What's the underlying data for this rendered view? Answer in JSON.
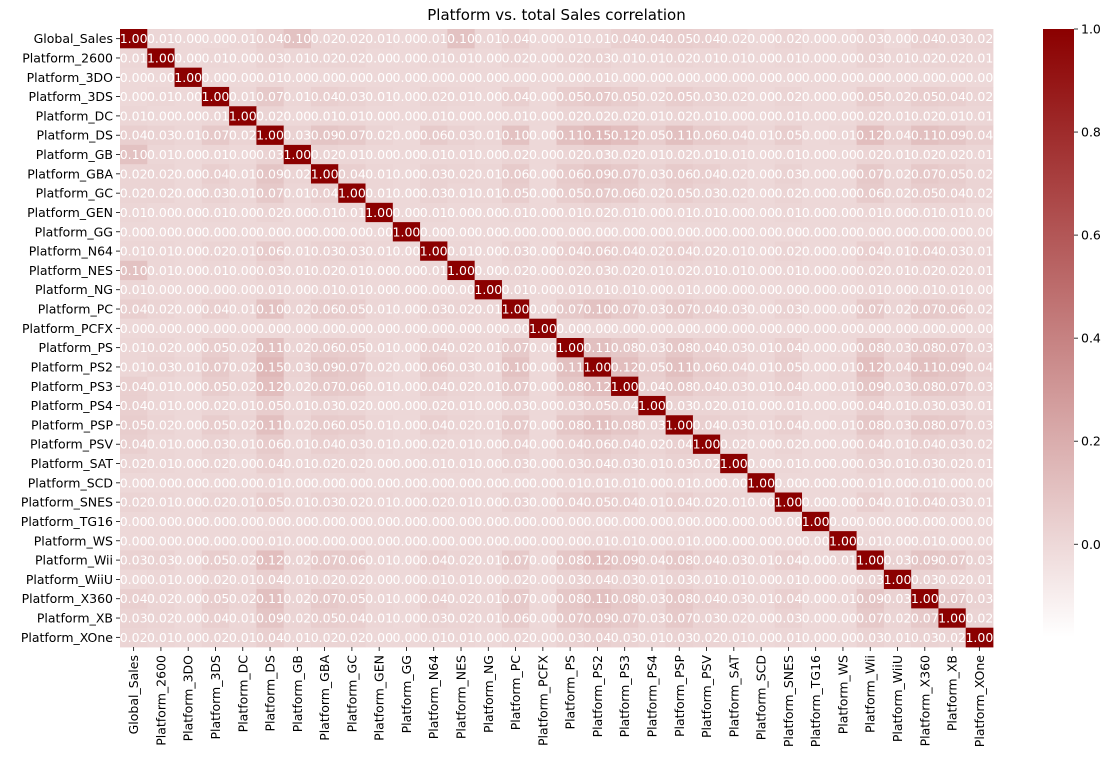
{
  "chart_data": {
    "type": "heatmap",
    "title": "Platform vs. total Sales correlation",
    "xlabel": "",
    "ylabel": "",
    "labels": [
      "Global_Sales",
      "Platform_2600",
      "Platform_3DO",
      "Platform_3DS",
      "Platform_DC",
      "Platform_DS",
      "Platform_GB",
      "Platform_GBA",
      "Platform_GC",
      "Platform_GEN",
      "Platform_GG",
      "Platform_N64",
      "Platform_NES",
      "Platform_NG",
      "Platform_PC",
      "Platform_PCFX",
      "Platform_PS",
      "Platform_PS2",
      "Platform_PS3",
      "Platform_PS4",
      "Platform_PSP",
      "Platform_PSV",
      "Platform_SAT",
      "Platform_SCD",
      "Platform_SNES",
      "Platform_TG16",
      "Platform_WS",
      "Platform_Wii",
      "Platform_WiiU",
      "Platform_X360",
      "Platform_XB",
      "Platform_XOne"
    ],
    "matrix": [
      [
        "1.00",
        "0.01",
        "0.00",
        "0.00",
        "0.01",
        "0.04",
        "0.10",
        "0.02",
        "0.02",
        "0.01",
        "0.00",
        "0.01",
        "0.10",
        "0.01",
        "0.04",
        "0.00",
        "0.01",
        "0.01",
        "0.04",
        "0.04",
        "0.05",
        "0.04",
        "0.02",
        "0.00",
        "0.02",
        "0.00",
        "0.00",
        "0.03",
        "0.00",
        "0.04",
        "0.03",
        "0.02"
      ],
      [
        "0.01",
        "1.00",
        "0.00",
        "0.01",
        "0.00",
        "0.03",
        "0.01",
        "0.02",
        "0.02",
        "0.00",
        "0.00",
        "0.01",
        "0.01",
        "0.00",
        "0.02",
        "0.00",
        "0.02",
        "0.03",
        "0.01",
        "0.01",
        "0.02",
        "0.01",
        "0.01",
        "0.00",
        "0.01",
        "0.00",
        "0.00",
        "0.03",
        "0.01",
        "0.02",
        "0.02",
        "0.01"
      ],
      [
        "0.00",
        "0.00",
        "1.00",
        "0.00",
        "0.00",
        "0.01",
        "0.00",
        "0.00",
        "0.00",
        "0.00",
        "0.00",
        "0.00",
        "0.00",
        "0.00",
        "0.00",
        "0.00",
        "0.00",
        "0.01",
        "0.00",
        "0.00",
        "0.00",
        "0.00",
        "0.00",
        "0.00",
        "0.00",
        "0.00",
        "0.00",
        "0.00",
        "0.00",
        "0.00",
        "0.00",
        "0.00"
      ],
      [
        "0.00",
        "0.01",
        "0.00",
        "1.00",
        "0.01",
        "0.07",
        "0.01",
        "0.04",
        "0.03",
        "0.01",
        "0.00",
        "0.02",
        "0.01",
        "0.00",
        "0.04",
        "0.00",
        "0.05",
        "0.07",
        "0.05",
        "0.02",
        "0.05",
        "0.03",
        "0.02",
        "0.00",
        "0.02",
        "0.00",
        "0.00",
        "0.05",
        "0.02",
        "0.05",
        "0.04",
        "0.02"
      ],
      [
        "0.01",
        "0.00",
        "0.00",
        "0.01",
        "1.00",
        "0.02",
        "0.00",
        "0.01",
        "0.01",
        "0.00",
        "0.00",
        "0.01",
        "0.00",
        "0.00",
        "0.01",
        "0.00",
        "0.02",
        "0.02",
        "0.02",
        "0.01",
        "0.02",
        "0.01",
        "0.00",
        "0.00",
        "0.01",
        "0.00",
        "0.00",
        "0.02",
        "0.01",
        "0.02",
        "0.01",
        "0.01"
      ],
      [
        "0.04",
        "0.03",
        "0.01",
        "0.07",
        "0.02",
        "1.00",
        "0.03",
        "0.09",
        "0.07",
        "0.02",
        "0.00",
        "0.06",
        "0.03",
        "0.01",
        "0.10",
        "0.00",
        "0.11",
        "0.15",
        "0.12",
        "0.05",
        "0.11",
        "0.06",
        "0.04",
        "0.01",
        "0.05",
        "0.00",
        "0.01",
        "0.12",
        "0.04",
        "0.11",
        "0.09",
        "0.04"
      ],
      [
        "0.10",
        "0.01",
        "0.00",
        "0.01",
        "0.00",
        "0.03",
        "1.00",
        "0.02",
        "0.01",
        "0.00",
        "0.00",
        "0.01",
        "0.01",
        "0.00",
        "0.02",
        "0.00",
        "0.02",
        "0.03",
        "0.02",
        "0.01",
        "0.02",
        "0.01",
        "0.01",
        "0.00",
        "0.01",
        "0.00",
        "0.00",
        "0.02",
        "0.01",
        "0.02",
        "0.02",
        "0.01"
      ],
      [
        "0.02",
        "0.02",
        "0.00",
        "0.04",
        "0.01",
        "0.09",
        "0.02",
        "1.00",
        "0.04",
        "0.01",
        "0.00",
        "0.03",
        "0.02",
        "0.01",
        "0.06",
        "0.00",
        "0.06",
        "0.09",
        "0.07",
        "0.03",
        "0.06",
        "0.04",
        "0.02",
        "0.00",
        "0.03",
        "0.00",
        "0.00",
        "0.07",
        "0.02",
        "0.07",
        "0.05",
        "0.02"
      ],
      [
        "0.02",
        "0.02",
        "0.00",
        "0.03",
        "0.01",
        "0.07",
        "0.01",
        "0.04",
        "1.00",
        "0.01",
        "0.00",
        "0.03",
        "0.01",
        "0.01",
        "0.05",
        "0.00",
        "0.05",
        "0.07",
        "0.06",
        "0.02",
        "0.05",
        "0.03",
        "0.02",
        "0.00",
        "0.02",
        "0.00",
        "0.00",
        "0.06",
        "0.02",
        "0.05",
        "0.04",
        "0.02"
      ],
      [
        "0.01",
        "0.00",
        "0.00",
        "0.01",
        "0.00",
        "0.02",
        "0.00",
        "0.01",
        "0.01",
        "1.00",
        "0.00",
        "0.01",
        "0.00",
        "0.00",
        "0.01",
        "0.00",
        "0.01",
        "0.02",
        "0.01",
        "0.00",
        "0.01",
        "0.01",
        "0.00",
        "0.00",
        "0.01",
        "0.00",
        "0.00",
        "0.01",
        "0.00",
        "0.01",
        "0.01",
        "0.00"
      ],
      [
        "0.00",
        "0.00",
        "0.00",
        "0.00",
        "0.00",
        "0.00",
        "0.00",
        "0.00",
        "0.00",
        "0.00",
        "1.00",
        "0.00",
        "0.00",
        "0.00",
        "0.00",
        "0.00",
        "0.00",
        "0.00",
        "0.00",
        "0.00",
        "0.00",
        "0.00",
        "0.00",
        "0.00",
        "0.00",
        "0.00",
        "0.00",
        "0.00",
        "0.00",
        "0.00",
        "0.00",
        "0.00"
      ],
      [
        "0.01",
        "0.01",
        "0.00",
        "0.02",
        "0.01",
        "0.06",
        "0.01",
        "0.03",
        "0.03",
        "0.01",
        "0.00",
        "1.00",
        "0.01",
        "0.00",
        "0.03",
        "0.00",
        "0.04",
        "0.06",
        "0.04",
        "0.02",
        "0.04",
        "0.02",
        "0.01",
        "0.00",
        "0.02",
        "0.00",
        "0.00",
        "0.04",
        "0.01",
        "0.04",
        "0.03",
        "0.01"
      ],
      [
        "0.10",
        "0.01",
        "0.00",
        "0.01",
        "0.00",
        "0.03",
        "0.01",
        "0.02",
        "0.01",
        "0.00",
        "0.00",
        "0.01",
        "1.00",
        "0.00",
        "0.02",
        "0.00",
        "0.02",
        "0.03",
        "0.02",
        "0.01",
        "0.02",
        "0.01",
        "0.01",
        "0.00",
        "0.01",
        "0.00",
        "0.00",
        "0.02",
        "0.01",
        "0.02",
        "0.02",
        "0.01"
      ],
      [
        "0.01",
        "0.00",
        "0.00",
        "0.00",
        "0.00",
        "0.01",
        "0.00",
        "0.01",
        "0.01",
        "0.00",
        "0.00",
        "0.00",
        "0.00",
        "1.00",
        "0.01",
        "0.00",
        "0.01",
        "0.01",
        "0.01",
        "0.00",
        "0.01",
        "0.00",
        "0.00",
        "0.00",
        "0.00",
        "0.00",
        "0.00",
        "0.01",
        "0.00",
        "0.01",
        "0.01",
        "0.00"
      ],
      [
        "0.04",
        "0.02",
        "0.00",
        "0.04",
        "0.01",
        "0.10",
        "0.02",
        "0.06",
        "0.05",
        "0.01",
        "0.00",
        "0.03",
        "0.02",
        "0.01",
        "1.00",
        "0.00",
        "0.07",
        "0.10",
        "0.07",
        "0.03",
        "0.07",
        "0.04",
        "0.03",
        "0.00",
        "0.03",
        "0.00",
        "0.00",
        "0.07",
        "0.02",
        "0.07",
        "0.06",
        "0.02"
      ],
      [
        "0.00",
        "0.00",
        "0.00",
        "0.00",
        "0.00",
        "0.00",
        "0.00",
        "0.00",
        "0.00",
        "0.00",
        "0.00",
        "0.00",
        "0.00",
        "0.00",
        "0.00",
        "1.00",
        "0.00",
        "0.00",
        "0.00",
        "0.00",
        "0.00",
        "0.00",
        "0.00",
        "0.00",
        "0.00",
        "0.00",
        "0.00",
        "0.00",
        "0.00",
        "0.00",
        "0.00",
        "0.00"
      ],
      [
        "0.01",
        "0.02",
        "0.00",
        "0.05",
        "0.02",
        "0.11",
        "0.02",
        "0.06",
        "0.05",
        "0.01",
        "0.00",
        "0.04",
        "0.02",
        "0.01",
        "0.07",
        "0.00",
        "1.00",
        "0.11",
        "0.08",
        "0.03",
        "0.08",
        "0.04",
        "0.03",
        "0.01",
        "0.04",
        "0.00",
        "0.00",
        "0.08",
        "0.03",
        "0.08",
        "0.07",
        "0.03"
      ],
      [
        "0.01",
        "0.03",
        "0.01",
        "0.07",
        "0.02",
        "0.15",
        "0.03",
        "0.09",
        "0.07",
        "0.02",
        "0.00",
        "0.06",
        "0.03",
        "0.01",
        "0.10",
        "0.00",
        "0.11",
        "1.00",
        "0.12",
        "0.05",
        "0.11",
        "0.06",
        "0.04",
        "0.01",
        "0.05",
        "0.00",
        "0.01",
        "0.12",
        "0.04",
        "0.11",
        "0.09",
        "0.04"
      ],
      [
        "0.04",
        "0.01",
        "0.00",
        "0.05",
        "0.02",
        "0.12",
        "0.02",
        "0.07",
        "0.06",
        "0.01",
        "0.00",
        "0.04",
        "0.02",
        "0.01",
        "0.07",
        "0.00",
        "0.08",
        "0.12",
        "1.00",
        "0.04",
        "0.08",
        "0.04",
        "0.03",
        "0.01",
        "0.04",
        "0.00",
        "0.01",
        "0.09",
        "0.03",
        "0.08",
        "0.07",
        "0.03"
      ],
      [
        "0.04",
        "0.01",
        "0.00",
        "0.02",
        "0.01",
        "0.05",
        "0.01",
        "0.03",
        "0.02",
        "0.00",
        "0.00",
        "0.02",
        "0.01",
        "0.00",
        "0.03",
        "0.00",
        "0.03",
        "0.05",
        "0.04",
        "1.00",
        "0.03",
        "0.02",
        "0.01",
        "0.00",
        "0.01",
        "0.00",
        "0.00",
        "0.04",
        "0.01",
        "0.03",
        "0.03",
        "0.01"
      ],
      [
        "0.05",
        "0.02",
        "0.00",
        "0.05",
        "0.02",
        "0.11",
        "0.02",
        "0.06",
        "0.05",
        "0.01",
        "0.00",
        "0.04",
        "0.02",
        "0.01",
        "0.07",
        "0.00",
        "0.08",
        "0.11",
        "0.08",
        "0.03",
        "1.00",
        "0.04",
        "0.03",
        "0.01",
        "0.04",
        "0.00",
        "0.01",
        "0.08",
        "0.03",
        "0.08",
        "0.07",
        "0.03"
      ],
      [
        "0.04",
        "0.01",
        "0.00",
        "0.03",
        "0.01",
        "0.06",
        "0.01",
        "0.04",
        "0.03",
        "0.01",
        "0.00",
        "0.02",
        "0.01",
        "0.00",
        "0.04",
        "0.00",
        "0.04",
        "0.06",
        "0.04",
        "0.02",
        "0.04",
        "1.00",
        "0.02",
        "0.00",
        "0.02",
        "0.00",
        "0.00",
        "0.04",
        "0.01",
        "0.04",
        "0.03",
        "0.02"
      ],
      [
        "0.02",
        "0.01",
        "0.00",
        "0.02",
        "0.00",
        "0.04",
        "0.01",
        "0.02",
        "0.02",
        "0.00",
        "0.00",
        "0.01",
        "0.01",
        "0.00",
        "0.03",
        "0.00",
        "0.03",
        "0.04",
        "0.03",
        "0.01",
        "0.03",
        "0.02",
        "1.00",
        "0.00",
        "0.01",
        "0.00",
        "0.00",
        "0.03",
        "0.01",
        "0.03",
        "0.02",
        "0.01"
      ],
      [
        "0.00",
        "0.00",
        "0.00",
        "0.00",
        "0.00",
        "0.01",
        "0.00",
        "0.00",
        "0.00",
        "0.00",
        "0.00",
        "0.00",
        "0.00",
        "0.00",
        "0.00",
        "0.00",
        "0.01",
        "0.01",
        "0.01",
        "0.00",
        "0.01",
        "0.00",
        "0.00",
        "1.00",
        "0.00",
        "0.00",
        "0.00",
        "0.01",
        "0.00",
        "0.01",
        "0.00",
        "0.00"
      ],
      [
        "0.02",
        "0.01",
        "0.00",
        "0.02",
        "0.01",
        "0.05",
        "0.01",
        "0.03",
        "0.02",
        "0.01",
        "0.00",
        "0.02",
        "0.01",
        "0.00",
        "0.03",
        "0.00",
        "0.04",
        "0.05",
        "0.04",
        "0.01",
        "0.04",
        "0.02",
        "0.01",
        "0.00",
        "1.00",
        "0.00",
        "0.00",
        "0.04",
        "0.01",
        "0.04",
        "0.03",
        "0.01"
      ],
      [
        "0.00",
        "0.00",
        "0.00",
        "0.00",
        "0.00",
        "0.00",
        "0.00",
        "0.00",
        "0.00",
        "0.00",
        "0.00",
        "0.00",
        "0.00",
        "0.00",
        "0.00",
        "0.00",
        "0.00",
        "0.00",
        "0.00",
        "0.00",
        "0.00",
        "0.00",
        "0.00",
        "0.00",
        "0.00",
        "1.00",
        "0.00",
        "0.00",
        "0.00",
        "0.00",
        "0.00",
        "0.00"
      ],
      [
        "0.00",
        "0.00",
        "0.00",
        "0.00",
        "0.00",
        "0.01",
        "0.00",
        "0.00",
        "0.00",
        "0.00",
        "0.00",
        "0.00",
        "0.00",
        "0.00",
        "0.00",
        "0.00",
        "0.00",
        "0.01",
        "0.01",
        "0.00",
        "0.01",
        "0.00",
        "0.00",
        "0.00",
        "0.00",
        "0.00",
        "1.00",
        "0.01",
        "0.00",
        "0.01",
        "0.00",
        "0.00"
      ],
      [
        "0.03",
        "0.03",
        "0.00",
        "0.05",
        "0.02",
        "0.12",
        "0.02",
        "0.07",
        "0.06",
        "0.01",
        "0.00",
        "0.04",
        "0.02",
        "0.01",
        "0.07",
        "0.00",
        "0.08",
        "0.12",
        "0.09",
        "0.04",
        "0.08",
        "0.04",
        "0.03",
        "0.01",
        "0.04",
        "0.00",
        "0.01",
        "1.00",
        "0.03",
        "0.09",
        "0.07",
        "0.03"
      ],
      [
        "0.00",
        "0.01",
        "0.00",
        "0.02",
        "0.01",
        "0.04",
        "0.01",
        "0.02",
        "0.02",
        "0.00",
        "0.00",
        "0.01",
        "0.01",
        "0.00",
        "0.02",
        "0.00",
        "0.03",
        "0.04",
        "0.03",
        "0.01",
        "0.03",
        "0.01",
        "0.01",
        "0.00",
        "0.01",
        "0.00",
        "0.00",
        "0.03",
        "1.00",
        "0.03",
        "0.02",
        "0.01"
      ],
      [
        "0.04",
        "0.02",
        "0.00",
        "0.05",
        "0.02",
        "0.11",
        "0.02",
        "0.07",
        "0.05",
        "0.01",
        "0.00",
        "0.04",
        "0.02",
        "0.01",
        "0.07",
        "0.00",
        "0.08",
        "0.11",
        "0.08",
        "0.03",
        "0.08",
        "0.04",
        "0.03",
        "0.01",
        "0.04",
        "0.00",
        "0.01",
        "0.09",
        "0.03",
        "1.00",
        "0.07",
        "0.03"
      ],
      [
        "0.03",
        "0.02",
        "0.00",
        "0.04",
        "0.01",
        "0.09",
        "0.02",
        "0.05",
        "0.04",
        "0.01",
        "0.00",
        "0.03",
        "0.02",
        "0.01",
        "0.06",
        "0.00",
        "0.07",
        "0.09",
        "0.07",
        "0.03",
        "0.07",
        "0.03",
        "0.02",
        "0.00",
        "0.03",
        "0.00",
        "0.00",
        "0.07",
        "0.02",
        "0.07",
        "1.00",
        "0.02"
      ],
      [
        "0.02",
        "0.01",
        "0.00",
        "0.02",
        "0.01",
        "0.04",
        "0.01",
        "0.02",
        "0.02",
        "0.00",
        "0.00",
        "0.01",
        "0.01",
        "0.00",
        "0.02",
        "0.00",
        "0.03",
        "0.04",
        "0.03",
        "0.01",
        "0.03",
        "0.02",
        "0.01",
        "0.00",
        "0.01",
        "0.00",
        "0.00",
        "0.03",
        "0.01",
        "0.03",
        "0.02",
        "1.00"
      ]
    ],
    "colorbar": {
      "vmin": -0.18,
      "vmax": 1.0,
      "ticks": [
        "0.0",
        "0.2",
        "0.4",
        "0.6",
        "0.8",
        "1.0"
      ],
      "tick_values": [
        0.0,
        0.2,
        0.4,
        0.6,
        0.8,
        1.0
      ],
      "colors": [
        "#ffffff",
        "#8b0000"
      ]
    }
  }
}
